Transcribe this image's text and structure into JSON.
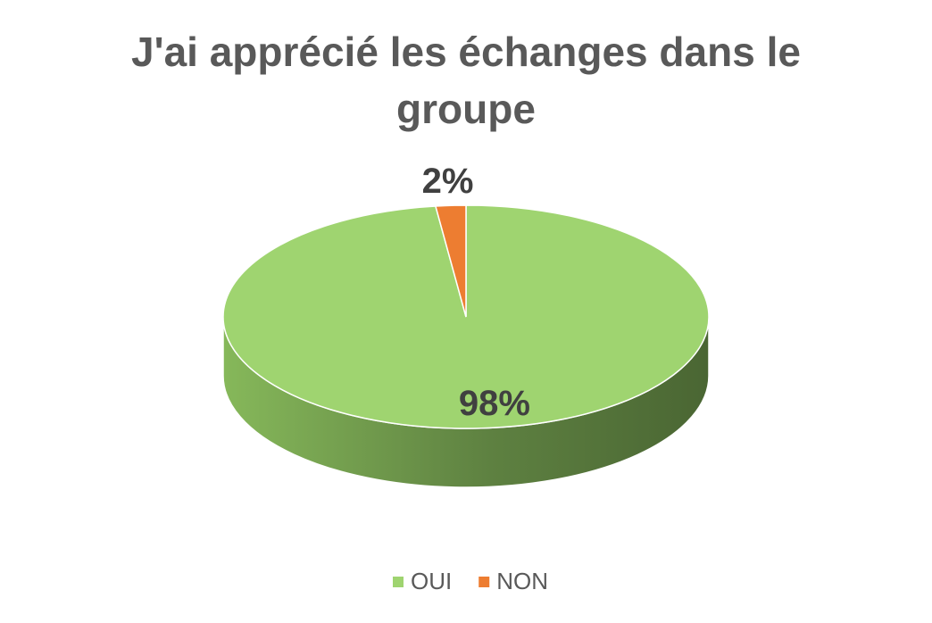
{
  "chart_data": {
    "type": "pie",
    "title": "J'ai apprécié les échanges dans le groupe",
    "categories": [
      "OUI",
      "NON"
    ],
    "values": [
      98,
      2
    ],
    "value_labels": [
      "98%",
      "2%"
    ],
    "colors": [
      "#9fd470",
      "#ed7d31"
    ],
    "legend": "bottom"
  }
}
